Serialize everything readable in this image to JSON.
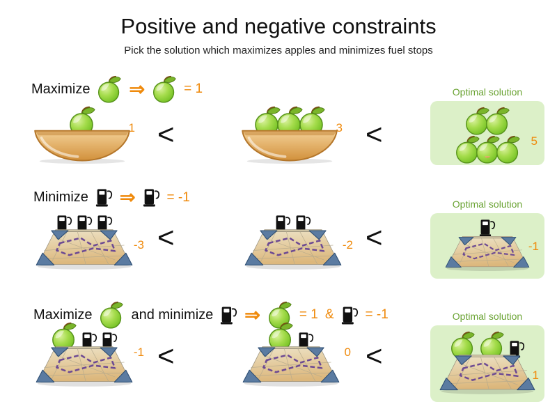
{
  "title": "Positive and negative constraints",
  "subtitle": "Pick the solution which maximizes apples and minimizes fuel stops",
  "colors": {
    "orange": "#ef8a0c",
    "green": "#6aa333",
    "green_bg": "#dcf0c8"
  },
  "rows": [
    {
      "name": "maximize-apples",
      "header": {
        "prefix": "Maximize",
        "arrow": "⇒",
        "result": "= 1"
      },
      "optimal_label": "Optimal solution",
      "comparator": "<",
      "items": [
        {
          "kind": "bowl",
          "apples": 1,
          "fuel": 0,
          "score": "1",
          "optimal": false
        },
        {
          "kind": "bowl",
          "apples": 3,
          "fuel": 0,
          "score": "3",
          "optimal": false
        },
        {
          "kind": "bowl",
          "apples": 5,
          "fuel": 0,
          "score": "5",
          "optimal": true
        }
      ]
    },
    {
      "name": "minimize-fuel-stops",
      "header": {
        "prefix": "Minimize",
        "arrow": "⇒",
        "result": "= -1"
      },
      "optimal_label": "Optimal solution",
      "comparator": "<",
      "items": [
        {
          "kind": "map",
          "apples": 0,
          "fuel": 3,
          "score": "-3",
          "optimal": false
        },
        {
          "kind": "map",
          "apples": 0,
          "fuel": 2,
          "score": "-2",
          "optimal": false
        },
        {
          "kind": "map",
          "apples": 0,
          "fuel": 1,
          "score": "-1",
          "optimal": true
        }
      ]
    },
    {
      "name": "maximize-and-minimize",
      "header": {
        "prefix": "Maximize",
        "middle": "and minimize",
        "arrow": "⇒",
        "result_apple": "= 1",
        "amp": "&",
        "result_fuel": "= -1"
      },
      "optimal_label": "Optimal solution",
      "comparator": "<",
      "items": [
        {
          "kind": "map",
          "apples": 1,
          "fuel": 2,
          "score": "-1",
          "optimal": false
        },
        {
          "kind": "map",
          "apples": 1,
          "fuel": 1,
          "score": "0",
          "optimal": false
        },
        {
          "kind": "map",
          "apples": 2,
          "fuel": 1,
          "score": "1",
          "optimal": true
        }
      ]
    }
  ]
}
